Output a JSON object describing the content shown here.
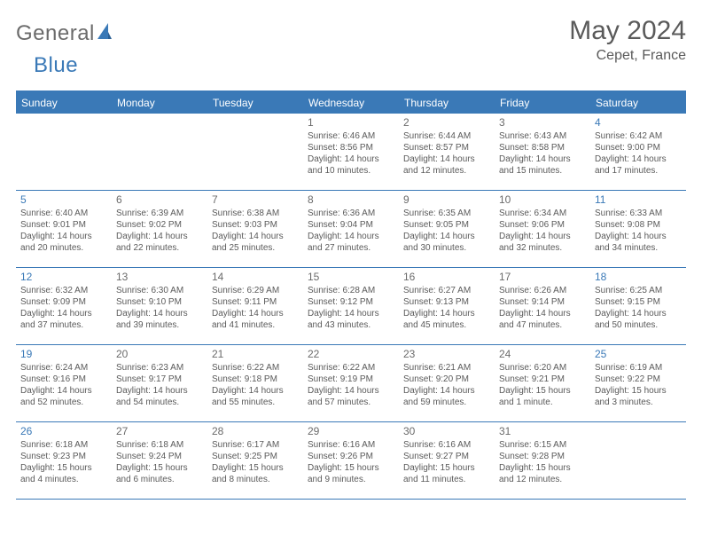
{
  "brand": {
    "part1": "General",
    "part2": "Blue"
  },
  "title": "May 2024",
  "location": "Cepet, France",
  "colors": {
    "accent": "#3a79b7",
    "text": "#5a5a5a",
    "weekday_bg": "#3a79b7",
    "weekday_fg": "#ffffff",
    "background": "#ffffff"
  },
  "weekdays": [
    "Sunday",
    "Monday",
    "Tuesday",
    "Wednesday",
    "Thursday",
    "Friday",
    "Saturday"
  ],
  "weeks": [
    [
      {
        "n": "",
        "lines": []
      },
      {
        "n": "",
        "lines": []
      },
      {
        "n": "",
        "lines": []
      },
      {
        "n": "1",
        "lines": [
          "Sunrise: 6:46 AM",
          "Sunset: 8:56 PM",
          "Daylight: 14 hours",
          "and 10 minutes."
        ]
      },
      {
        "n": "2",
        "lines": [
          "Sunrise: 6:44 AM",
          "Sunset: 8:57 PM",
          "Daylight: 14 hours",
          "and 12 minutes."
        ]
      },
      {
        "n": "3",
        "lines": [
          "Sunrise: 6:43 AM",
          "Sunset: 8:58 PM",
          "Daylight: 14 hours",
          "and 15 minutes."
        ]
      },
      {
        "n": "4",
        "wknd": true,
        "lines": [
          "Sunrise: 6:42 AM",
          "Sunset: 9:00 PM",
          "Daylight: 14 hours",
          "and 17 minutes."
        ]
      }
    ],
    [
      {
        "n": "5",
        "wknd": true,
        "lines": [
          "Sunrise: 6:40 AM",
          "Sunset: 9:01 PM",
          "Daylight: 14 hours",
          "and 20 minutes."
        ]
      },
      {
        "n": "6",
        "lines": [
          "Sunrise: 6:39 AM",
          "Sunset: 9:02 PM",
          "Daylight: 14 hours",
          "and 22 minutes."
        ]
      },
      {
        "n": "7",
        "lines": [
          "Sunrise: 6:38 AM",
          "Sunset: 9:03 PM",
          "Daylight: 14 hours",
          "and 25 minutes."
        ]
      },
      {
        "n": "8",
        "lines": [
          "Sunrise: 6:36 AM",
          "Sunset: 9:04 PM",
          "Daylight: 14 hours",
          "and 27 minutes."
        ]
      },
      {
        "n": "9",
        "lines": [
          "Sunrise: 6:35 AM",
          "Sunset: 9:05 PM",
          "Daylight: 14 hours",
          "and 30 minutes."
        ]
      },
      {
        "n": "10",
        "lines": [
          "Sunrise: 6:34 AM",
          "Sunset: 9:06 PM",
          "Daylight: 14 hours",
          "and 32 minutes."
        ]
      },
      {
        "n": "11",
        "wknd": true,
        "lines": [
          "Sunrise: 6:33 AM",
          "Sunset: 9:08 PM",
          "Daylight: 14 hours",
          "and 34 minutes."
        ]
      }
    ],
    [
      {
        "n": "12",
        "wknd": true,
        "lines": [
          "Sunrise: 6:32 AM",
          "Sunset: 9:09 PM",
          "Daylight: 14 hours",
          "and 37 minutes."
        ]
      },
      {
        "n": "13",
        "lines": [
          "Sunrise: 6:30 AM",
          "Sunset: 9:10 PM",
          "Daylight: 14 hours",
          "and 39 minutes."
        ]
      },
      {
        "n": "14",
        "lines": [
          "Sunrise: 6:29 AM",
          "Sunset: 9:11 PM",
          "Daylight: 14 hours",
          "and 41 minutes."
        ]
      },
      {
        "n": "15",
        "lines": [
          "Sunrise: 6:28 AM",
          "Sunset: 9:12 PM",
          "Daylight: 14 hours",
          "and 43 minutes."
        ]
      },
      {
        "n": "16",
        "lines": [
          "Sunrise: 6:27 AM",
          "Sunset: 9:13 PM",
          "Daylight: 14 hours",
          "and 45 minutes."
        ]
      },
      {
        "n": "17",
        "lines": [
          "Sunrise: 6:26 AM",
          "Sunset: 9:14 PM",
          "Daylight: 14 hours",
          "and 47 minutes."
        ]
      },
      {
        "n": "18",
        "wknd": true,
        "lines": [
          "Sunrise: 6:25 AM",
          "Sunset: 9:15 PM",
          "Daylight: 14 hours",
          "and 50 minutes."
        ]
      }
    ],
    [
      {
        "n": "19",
        "wknd": true,
        "lines": [
          "Sunrise: 6:24 AM",
          "Sunset: 9:16 PM",
          "Daylight: 14 hours",
          "and 52 minutes."
        ]
      },
      {
        "n": "20",
        "lines": [
          "Sunrise: 6:23 AM",
          "Sunset: 9:17 PM",
          "Daylight: 14 hours",
          "and 54 minutes."
        ]
      },
      {
        "n": "21",
        "lines": [
          "Sunrise: 6:22 AM",
          "Sunset: 9:18 PM",
          "Daylight: 14 hours",
          "and 55 minutes."
        ]
      },
      {
        "n": "22",
        "lines": [
          "Sunrise: 6:22 AM",
          "Sunset: 9:19 PM",
          "Daylight: 14 hours",
          "and 57 minutes."
        ]
      },
      {
        "n": "23",
        "lines": [
          "Sunrise: 6:21 AM",
          "Sunset: 9:20 PM",
          "Daylight: 14 hours",
          "and 59 minutes."
        ]
      },
      {
        "n": "24",
        "lines": [
          "Sunrise: 6:20 AM",
          "Sunset: 9:21 PM",
          "Daylight: 15 hours",
          "and 1 minute."
        ]
      },
      {
        "n": "25",
        "wknd": true,
        "lines": [
          "Sunrise: 6:19 AM",
          "Sunset: 9:22 PM",
          "Daylight: 15 hours",
          "and 3 minutes."
        ]
      }
    ],
    [
      {
        "n": "26",
        "wknd": true,
        "lines": [
          "Sunrise: 6:18 AM",
          "Sunset: 9:23 PM",
          "Daylight: 15 hours",
          "and 4 minutes."
        ]
      },
      {
        "n": "27",
        "lines": [
          "Sunrise: 6:18 AM",
          "Sunset: 9:24 PM",
          "Daylight: 15 hours",
          "and 6 minutes."
        ]
      },
      {
        "n": "28",
        "lines": [
          "Sunrise: 6:17 AM",
          "Sunset: 9:25 PM",
          "Daylight: 15 hours",
          "and 8 minutes."
        ]
      },
      {
        "n": "29",
        "lines": [
          "Sunrise: 6:16 AM",
          "Sunset: 9:26 PM",
          "Daylight: 15 hours",
          "and 9 minutes."
        ]
      },
      {
        "n": "30",
        "lines": [
          "Sunrise: 6:16 AM",
          "Sunset: 9:27 PM",
          "Daylight: 15 hours",
          "and 11 minutes."
        ]
      },
      {
        "n": "31",
        "lines": [
          "Sunrise: 6:15 AM",
          "Sunset: 9:28 PM",
          "Daylight: 15 hours",
          "and 12 minutes."
        ]
      },
      {
        "n": "",
        "lines": []
      }
    ]
  ]
}
